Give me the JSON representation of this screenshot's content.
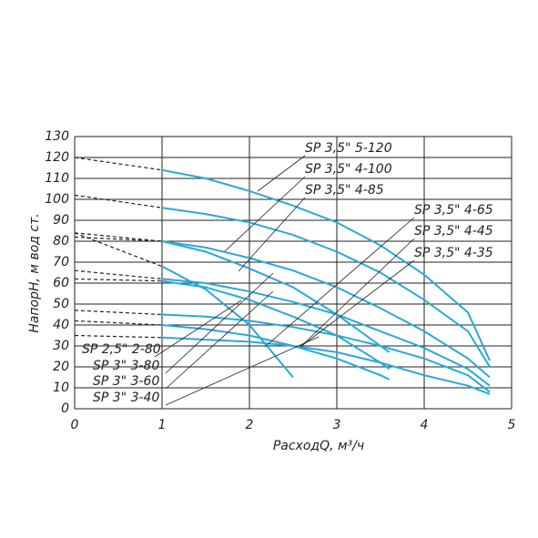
{
  "chart_data": {
    "type": "line",
    "x_label": "РасходQ, м³/ч",
    "y_label": "НапорH, м вод ст.",
    "xlim": [
      0,
      5
    ],
    "ylim": [
      0,
      130
    ],
    "xticks": [
      0,
      1,
      2,
      3,
      4,
      5
    ],
    "yticks": [
      0,
      10,
      20,
      30,
      40,
      50,
      60,
      70,
      80,
      90,
      100,
      110,
      120,
      130
    ],
    "grid": true,
    "series": [
      {
        "name": "SP 3,5\" 5-120",
        "color": "#29a9d6",
        "x": [
          0,
          1,
          1.5,
          2,
          2.5,
          3,
          3.5,
          4,
          4.5,
          4.75
        ],
        "values": [
          120,
          114,
          110,
          104,
          97,
          89,
          78,
          64,
          46,
          23
        ]
      },
      {
        "name": "SP 3,5\" 4-100",
        "color": "#29a9d6",
        "x": [
          0,
          1,
          1.5,
          2,
          2.5,
          3,
          3.5,
          4,
          4.5,
          4.75
        ],
        "values": [
          102,
          96,
          93,
          89,
          83,
          75,
          65,
          52,
          37,
          20
        ]
      },
      {
        "name": "SP 3,5\" 4-85",
        "color": "#29a9d6",
        "x": [
          0,
          1,
          1.5,
          2,
          2.5,
          3,
          3.5,
          4,
          4.5,
          4.75
        ],
        "values": [
          84,
          80,
          77,
          72,
          66,
          58,
          48,
          37,
          24,
          15
        ]
      },
      {
        "name": "SP 3,5\" 4-65",
        "color": "#29a9d6",
        "x": [
          0,
          1,
          1.5,
          2,
          2.5,
          3,
          3.5,
          4,
          4.5,
          4.75
        ],
        "values": [
          66,
          62,
          60,
          56,
          51,
          45,
          37,
          29,
          19,
          11
        ]
      },
      {
        "name": "SP 3,5\" 4-45",
        "color": "#29a9d6",
        "x": [
          0,
          1,
          1.5,
          2,
          2.5,
          3,
          3.5,
          4,
          4.5,
          4.75
        ],
        "values": [
          47,
          45,
          44,
          42,
          39,
          35,
          30,
          24,
          16,
          8
        ]
      },
      {
        "name": "SP 3,5\" 4-35",
        "color": "#29a9d6",
        "x": [
          0,
          1,
          1.5,
          2,
          2.5,
          3,
          3.5,
          4,
          4.5,
          4.75
        ],
        "values": [
          35,
          34,
          33,
          32,
          30,
          27,
          22,
          16,
          11,
          7
        ]
      },
      {
        "name": "SP 2,5\" 2-80",
        "color": "#29a9d6",
        "x": [
          0,
          1,
          1.5,
          2,
          2.5
        ],
        "values": [
          84,
          68,
          57,
          40,
          15
        ]
      },
      {
        "name": "SP 3\" 3-80",
        "color": "#29a9d6",
        "x": [
          0,
          1,
          1.5,
          2,
          2.5,
          3,
          3.5,
          3.6
        ],
        "values": [
          82,
          80,
          75,
          67,
          58,
          45,
          30,
          27
        ]
      },
      {
        "name": "SP 3\" 3-60",
        "color": "#29a9d6",
        "x": [
          0,
          1,
          1.5,
          2,
          2.5,
          3,
          3.5,
          3.6
        ],
        "values": [
          62,
          61,
          58,
          52,
          44,
          35,
          22,
          19
        ]
      },
      {
        "name": "SP 3\" 3-40",
        "color": "#29a9d6",
        "x": [
          0,
          1,
          1.5,
          2,
          2.5,
          3,
          3.5,
          3.6
        ],
        "values": [
          42,
          40,
          38,
          35,
          30,
          24,
          16,
          14
        ]
      }
    ]
  }
}
